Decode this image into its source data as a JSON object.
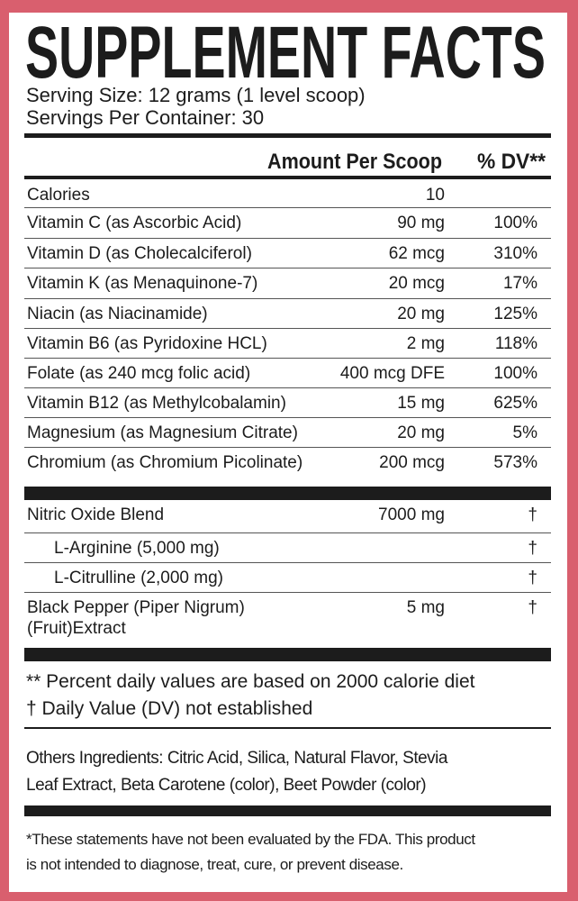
{
  "title": "SUPPLEMENT FACTS",
  "serving_size": "Serving Size: 12 grams (1 level scoop)",
  "servings_per_container": "Servings Per Container: 30",
  "header": {
    "amount": "Amount Per Scoop",
    "dv": "% DV**"
  },
  "nutrients": [
    {
      "name": "Calories",
      "amount": "10",
      "dv": ""
    },
    {
      "name": "Vitamin C (as Ascorbic Acid)",
      "amount": "90 mg",
      "dv": "100%"
    },
    {
      "name": "Vitamin D (as Cholecalciferol)",
      "amount": "62 mcg",
      "dv": "310%"
    },
    {
      "name": "Vitamin K (as Menaquinone-7)",
      "amount": "20 mcg",
      "dv": "17%"
    },
    {
      "name": "Niacin (as Niacinamide)",
      "amount": "20 mg",
      "dv": "125%"
    },
    {
      "name": "Vitamin B6 (as Pyridoxine HCL)",
      "amount": "2 mg",
      "dv": "118%"
    },
    {
      "name": "Folate (as 240 mcg folic acid)",
      "amount": "400 mcg DFE",
      "dv": "100%"
    },
    {
      "name": "Vitamin B12 (as Methylcobalamin)",
      "amount": "15 mg",
      "dv": "625%"
    },
    {
      "name": "Magnesium (as Magnesium Citrate)",
      "amount": "20 mg",
      "dv": "5%"
    },
    {
      "name": "Chromium (as Chromium Picolinate)",
      "amount": "200 mcg",
      "dv": "573%"
    }
  ],
  "blend": [
    {
      "name": "Nitric Oxide Blend",
      "amount": "7000 mg",
      "dv": "†"
    },
    {
      "name": "L-Arginine (5,000 mg)",
      "amount": "",
      "dv": "†"
    },
    {
      "name": "L-Citrulline (2,000 mg)",
      "amount": "",
      "dv": "†"
    },
    {
      "name": "Black Pepper (Piper Nigrum)",
      "name2": "(Fruit)Extract",
      "amount": "5 mg",
      "dv": "†"
    }
  ],
  "footnotes": [
    "** Percent daily values are based on 2000 calorie diet",
    "† Daily Value (DV) not established"
  ],
  "other_ingredients": [
    "Others Ingredients: Citric Acid, Silica, Natural Flavor, Stevia",
    "Leaf Extract, Beta Carotene (color), Beet Powder (color)"
  ],
  "disclaimer": [
    "*These statements have not been evaluated by the FDA. This product",
    "is not intended to diagnose, treat, cure, or prevent disease."
  ],
  "colors": {
    "border": "#d95f6e",
    "text": "#1c1c1c"
  }
}
